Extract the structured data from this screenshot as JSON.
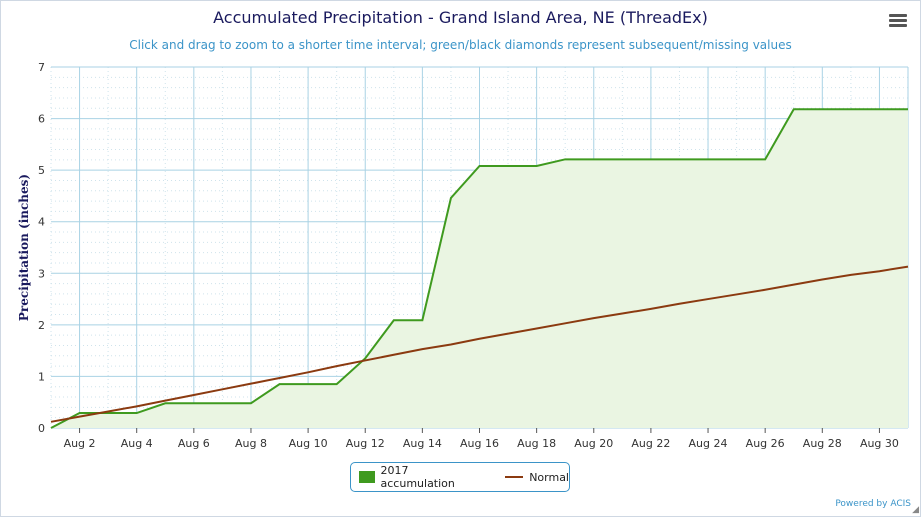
{
  "chart_data": {
    "type": "area",
    "title": "Accumulated Precipitation - Grand Island Area, NE (ThreadEx)",
    "subtitle": "Click and drag to zoom to a shorter time interval; green/black diamonds represent subsequent/missing values",
    "ylabel": "Precipitation (inches)",
    "xlabel": "",
    "ylim": [
      0,
      7
    ],
    "xlim": [
      1,
      31
    ],
    "y_ticks": [
      0,
      1,
      2,
      3,
      4,
      5,
      6,
      7
    ],
    "x_ticks": [
      2,
      4,
      6,
      8,
      10,
      12,
      14,
      16,
      18,
      20,
      22,
      24,
      26,
      28,
      30
    ],
    "x_tick_labels": [
      "Aug 2",
      "Aug 4",
      "Aug 6",
      "Aug 8",
      "Aug 10",
      "Aug 12",
      "Aug 14",
      "Aug 16",
      "Aug 18",
      "Aug 20",
      "Aug 22",
      "Aug 24",
      "Aug 26",
      "Aug 28",
      "Aug 30"
    ],
    "grid": true,
    "legend_position": "bottom-center",
    "series": [
      {
        "name": "2017 accumulation",
        "kind": "area",
        "color": "#3f9a1f",
        "fill": "#eaf5e2",
        "x": [
          1,
          2,
          3,
          4,
          5,
          6,
          7,
          8,
          9,
          10,
          11,
          12,
          13,
          14,
          15,
          16,
          17,
          18,
          19,
          20,
          21,
          22,
          23,
          24,
          25,
          26,
          27,
          28,
          29,
          30,
          31
        ],
        "y": [
          0.0,
          0.29,
          0.29,
          0.29,
          0.48,
          0.48,
          0.48,
          0.48,
          0.85,
          0.85,
          0.85,
          1.35,
          2.09,
          2.09,
          4.46,
          5.08,
          5.08,
          5.08,
          5.21,
          5.21,
          5.21,
          5.21,
          5.21,
          5.21,
          5.21,
          5.21,
          6.18,
          6.18,
          6.18,
          6.18,
          6.18
        ]
      },
      {
        "name": "Normal",
        "kind": "line",
        "color": "#8b3a10",
        "x": [
          1,
          2,
          3,
          4,
          5,
          6,
          7,
          8,
          9,
          10,
          11,
          12,
          13,
          14,
          15,
          16,
          17,
          18,
          19,
          20,
          21,
          22,
          23,
          24,
          25,
          26,
          27,
          28,
          29,
          30,
          31
        ],
        "y": [
          0.12,
          0.22,
          0.32,
          0.42,
          0.53,
          0.64,
          0.75,
          0.86,
          0.97,
          1.08,
          1.2,
          1.31,
          1.42,
          1.53,
          1.62,
          1.73,
          1.83,
          1.93,
          2.03,
          2.13,
          2.22,
          2.31,
          2.41,
          2.5,
          2.59,
          2.68,
          2.78,
          2.88,
          2.97,
          3.04,
          3.13
        ]
      }
    ]
  },
  "legend": {
    "item1": "2017 accumulation",
    "item2": "Normal"
  },
  "credit": "Powered by ACIS",
  "colors": {
    "accent": "#3b94c8",
    "title": "#1a1a5e",
    "grid": "#a9d2e4"
  },
  "icons": {
    "menu": "hamburger-menu-icon"
  }
}
